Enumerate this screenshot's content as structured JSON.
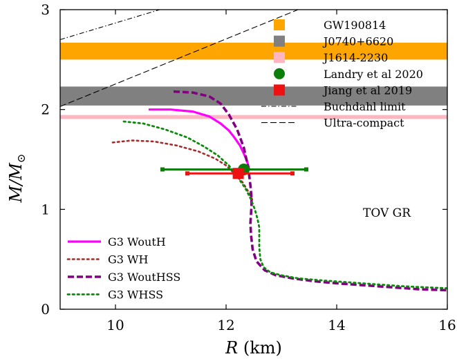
{
  "chart_data": {
    "type": "line",
    "xlabel": "R (km)",
    "ylabel": "M/M⊙",
    "xlim": [
      9,
      16
    ],
    "ylim": [
      0,
      3
    ],
    "xticks": [
      10,
      12,
      14,
      16
    ],
    "yticks": [
      0,
      1,
      2,
      3
    ],
    "annotation": "TOV GR",
    "bands": [
      {
        "name": "GW190814",
        "ymin": 2.5,
        "ymax": 2.67,
        "color": "#ffa500"
      },
      {
        "name": "J0740+6620",
        "ymin": 2.04,
        "ymax": 2.23,
        "color": "#808080"
      },
      {
        "name": "J1614-2230",
        "ymin": 1.905,
        "ymax": 1.945,
        "color": "#ffb6c1"
      }
    ],
    "points": [
      {
        "name": "Landry et al 2020",
        "x": 12.32,
        "y": 1.4,
        "xerr": [
          10.85,
          13.45
        ],
        "color": "#0b7d0b",
        "marker": "circle"
      },
      {
        "name": "Jiang et al 2019",
        "x": 12.22,
        "y": 1.36,
        "xerr": [
          11.3,
          13.2
        ],
        "color": "#ee1111",
        "marker": "square"
      }
    ],
    "lines": [
      {
        "name": "Buchdahl limit",
        "style": "dashdot",
        "color": "#000000",
        "x": [
          9,
          10.8
        ],
        "y": [
          2.7,
          3.0
        ]
      },
      {
        "name": "Ultra-compact",
        "style": "dashed",
        "color": "#000000",
        "x": [
          9,
          13.3
        ],
        "y": [
          2.03,
          3.0
        ]
      }
    ],
    "series": [
      {
        "name": "G3 WoutH",
        "style": "solid",
        "color": "#ff00ff",
        "x": [
          10.6,
          11.0,
          11.4,
          11.7,
          11.9,
          12.05,
          12.15,
          12.25,
          12.32,
          12.38,
          12.42
        ],
        "y": [
          2.0,
          2.0,
          1.98,
          1.93,
          1.86,
          1.79,
          1.72,
          1.64,
          1.56,
          1.48,
          1.4
        ]
      },
      {
        "name": "G3 WH",
        "style": "dotted",
        "color": "#a52a2a",
        "x": [
          9.95,
          10.3,
          10.7,
          11.1,
          11.5,
          11.8,
          12.0,
          12.15,
          12.3,
          12.4,
          12.48
        ],
        "y": [
          1.67,
          1.69,
          1.68,
          1.64,
          1.58,
          1.51,
          1.44,
          1.36,
          1.27,
          1.18,
          1.09
        ]
      },
      {
        "name": "G3 WoutHSS",
        "style": "dashed",
        "color": "#800080",
        "x": [
          11.05,
          11.4,
          11.7,
          11.9,
          12.05,
          12.2,
          12.32,
          12.4,
          12.44,
          12.46,
          12.46,
          12.45,
          12.44,
          12.45,
          12.48,
          12.55,
          12.7,
          12.9,
          13.2,
          13.6,
          14.0,
          14.5,
          15.0,
          15.5,
          16.0
        ],
        "y": [
          2.18,
          2.17,
          2.13,
          2.06,
          1.95,
          1.8,
          1.62,
          1.42,
          1.24,
          1.12,
          1.04,
          0.95,
          0.86,
          0.75,
          0.6,
          0.48,
          0.39,
          0.34,
          0.31,
          0.28,
          0.26,
          0.24,
          0.22,
          0.2,
          0.19
        ]
      },
      {
        "name": "G3 WHSS",
        "style": "dotted",
        "color": "#0b8a0b",
        "x": [
          10.15,
          10.5,
          10.9,
          11.3,
          11.6,
          11.85,
          12.05,
          12.2,
          12.35,
          12.45,
          12.52,
          12.57,
          12.6,
          12.6,
          12.6,
          12.62,
          12.68,
          12.8,
          13.0,
          13.3,
          13.7,
          14.2,
          14.7,
          15.2,
          15.6,
          16.0
        ],
        "y": [
          1.88,
          1.86,
          1.8,
          1.72,
          1.63,
          1.54,
          1.44,
          1.33,
          1.21,
          1.1,
          1.0,
          0.9,
          0.82,
          0.74,
          0.62,
          0.5,
          0.42,
          0.37,
          0.34,
          0.31,
          0.29,
          0.27,
          0.25,
          0.23,
          0.22,
          0.21
        ]
      }
    ]
  }
}
